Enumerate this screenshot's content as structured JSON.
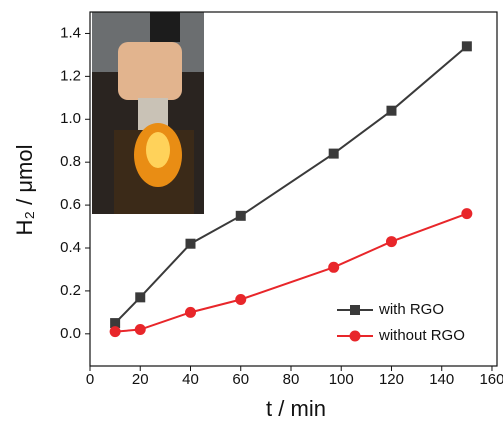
{
  "chart_data": {
    "type": "line",
    "xlabel": "t / min",
    "ylabel": "H₂ / μmol",
    "x": [
      10,
      20,
      40,
      60,
      97,
      120,
      150
    ],
    "series": [
      {
        "name": "with RGO",
        "color": "#3a3a3a",
        "marker": "square",
        "values": [
          0.05,
          0.17,
          0.42,
          0.55,
          0.84,
          1.04,
          1.34
        ]
      },
      {
        "name": "without RGO",
        "color": "#e8262a",
        "marker": "circle",
        "values": [
          0.01,
          0.02,
          0.1,
          0.16,
          0.31,
          0.43,
          0.56
        ]
      }
    ],
    "xlim": [
      0,
      162
    ],
    "xticks": [
      0,
      20,
      40,
      60,
      80,
      100,
      120,
      140,
      160
    ],
    "ylim": [
      -0.15,
      1.5
    ],
    "yticks": [
      {
        "value": 0,
        "label": "0.0"
      },
      0.2,
      0.4,
      0.6,
      0.8,
      {
        "value": 1,
        "label": "1.0"
      },
      1.2,
      1.4
    ],
    "legend": "lower right"
  }
}
